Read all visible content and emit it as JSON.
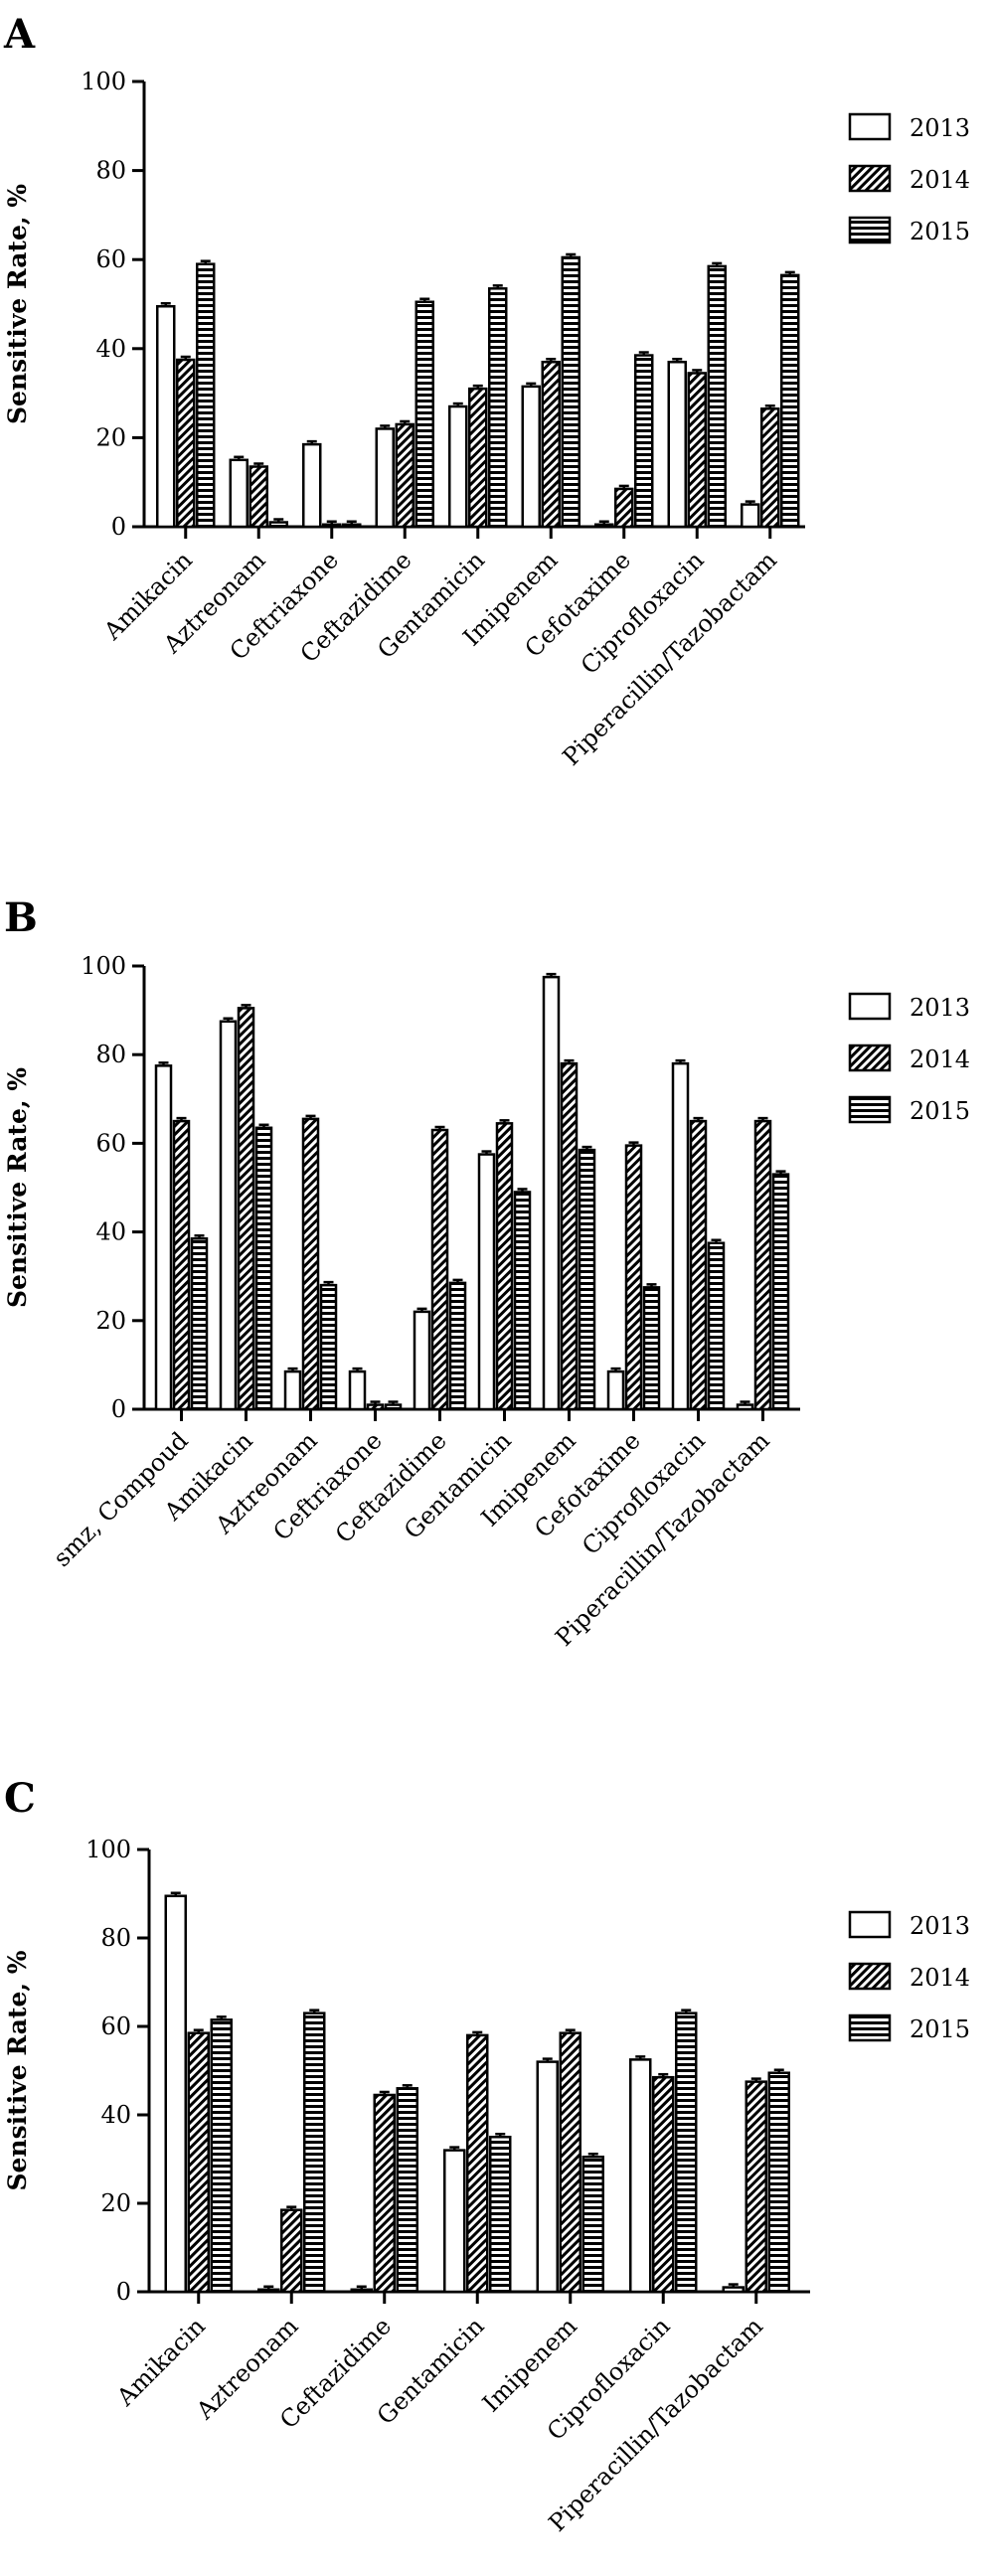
{
  "chart_data": [
    {
      "type": "bar",
      "panel": "A",
      "ylabel": "Sensitive Rate, %",
      "ylim": [
        0,
        100
      ],
      "yticks": [
        "0",
        "20",
        "40",
        "60",
        "80",
        "100"
      ],
      "legend_position": "top-right",
      "categories": [
        "Amikacin",
        "Aztreonam",
        "Ceftriaxone",
        "Ceftazidime",
        "Gentamicin",
        "Imipenem",
        "Cefotaxime",
        "Ciprofloxacin",
        "Piperacillin/Tazobactam"
      ],
      "series": [
        {
          "name": "2013",
          "pattern": "white",
          "values": [
            49.5,
            15,
            18.5,
            22,
            27,
            31.5,
            0.5,
            37,
            5
          ]
        },
        {
          "name": "2014",
          "pattern": "diagonal",
          "values": [
            37.5,
            13.5,
            0.5,
            23,
            31,
            37,
            8.5,
            34.5,
            26.5
          ]
        },
        {
          "name": "2015",
          "pattern": "horizontal",
          "values": [
            59,
            1,
            0.5,
            50.5,
            53.5,
            60.5,
            38.5,
            58.5,
            56.5
          ]
        }
      ]
    },
    {
      "type": "bar",
      "panel": "B",
      "ylabel": "Sensitive Rate, %",
      "ylim": [
        0,
        100
      ],
      "yticks": [
        "0",
        "20",
        "40",
        "60",
        "80",
        "100"
      ],
      "legend_position": "top-right",
      "categories": [
        "smz, Compoud",
        "Amikacin",
        "Aztreonam",
        "Ceftriaxone",
        "Ceftazidime",
        "Gentamicin",
        "Imipenem",
        "Cefotaxime",
        "Ciprofloxacin",
        "Piperacillin/Tazobactam"
      ],
      "series": [
        {
          "name": "2013",
          "pattern": "white",
          "values": [
            77.5,
            87.5,
            8.5,
            8.5,
            22,
            57.5,
            97.5,
            8.5,
            78,
            1
          ]
        },
        {
          "name": "2014",
          "pattern": "diagonal",
          "values": [
            65,
            90.5,
            65.5,
            1,
            63,
            64.5,
            78,
            59.5,
            65,
            65
          ]
        },
        {
          "name": "2015",
          "pattern": "horizontal",
          "values": [
            38.5,
            63.5,
            28,
            1,
            28.5,
            49,
            58.5,
            27.5,
            37.5,
            53
          ]
        }
      ]
    },
    {
      "type": "bar",
      "panel": "C",
      "ylabel": "Sensitive Rate, %",
      "ylim": [
        0,
        100
      ],
      "yticks": [
        "0",
        "20",
        "40",
        "60",
        "80",
        "100"
      ],
      "legend_position": "top-right",
      "categories": [
        "Amikacin",
        "Aztreonam",
        "Ceftazidime",
        "Gentamicin",
        "Imipenem",
        "Ciprofloxacin",
        "Piperacillin/Tazobactam"
      ],
      "series": [
        {
          "name": "2013",
          "pattern": "white",
          "values": [
            89.5,
            0.5,
            0.5,
            32,
            52,
            52.5,
            1
          ]
        },
        {
          "name": "2014",
          "pattern": "diagonal",
          "values": [
            58.5,
            18.5,
            44.5,
            58,
            58.5,
            48.5,
            47.5
          ]
        },
        {
          "name": "2015",
          "pattern": "horizontal",
          "values": [
            61.5,
            63,
            46,
            35,
            30.5,
            63,
            49.5
          ]
        }
      ]
    }
  ]
}
